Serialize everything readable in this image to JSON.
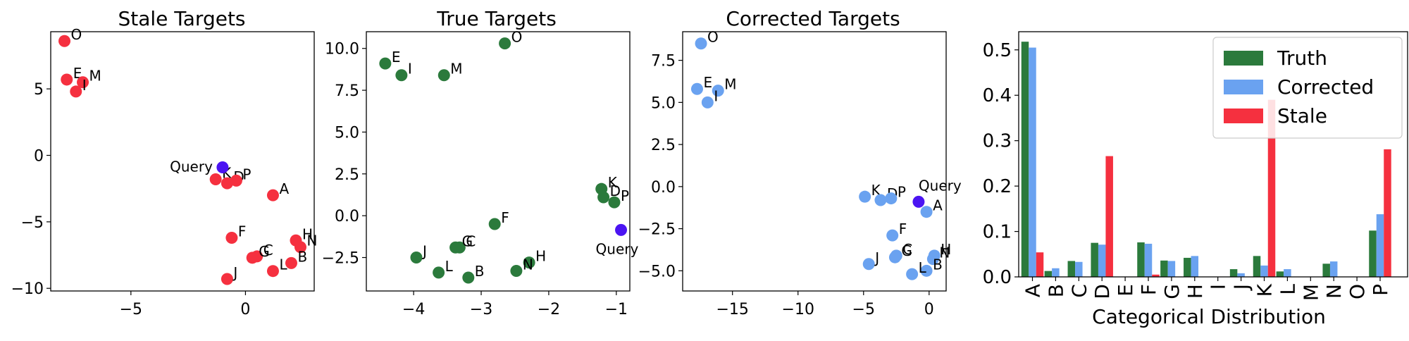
{
  "figure": {
    "background": "#ffffff"
  },
  "chart_data": [
    {
      "id": "stale",
      "type": "scatter",
      "title": "Stale Targets",
      "xlabel": "",
      "ylabel": "",
      "xlim": [
        -8.5,
        3.0
      ],
      "ylim": [
        -10.2,
        9.3
      ],
      "xticks": [
        -5,
        0
      ],
      "xtick_labels": [
        "−5",
        "0"
      ],
      "yticks": [
        -10,
        -5,
        0,
        5
      ],
      "ytick_labels": [
        "−10",
        "−5",
        "0",
        "5"
      ],
      "point_color": "#f5303f",
      "points": [
        {
          "label": "O",
          "x": -7.9,
          "y": 8.6
        },
        {
          "label": "E",
          "x": -7.8,
          "y": 5.7
        },
        {
          "label": "M",
          "x": -7.1,
          "y": 5.5
        },
        {
          "label": "I",
          "x": -7.4,
          "y": 4.8
        },
        {
          "label": "K",
          "x": -1.3,
          "y": -1.8
        },
        {
          "label": "D",
          "x": -0.8,
          "y": -2.1
        },
        {
          "label": "P",
          "x": -0.4,
          "y": -1.9
        },
        {
          "label": "A",
          "x": 1.2,
          "y": -3.0
        },
        {
          "label": "F",
          "x": -0.6,
          "y": -6.2
        },
        {
          "label": "H",
          "x": 2.2,
          "y": -6.4
        },
        {
          "label": "N",
          "x": 2.4,
          "y": -6.9
        },
        {
          "label": "C",
          "x": 0.5,
          "y": -7.6
        },
        {
          "label": "G",
          "x": 0.3,
          "y": -7.7
        },
        {
          "label": "B",
          "x": 2.0,
          "y": -8.1
        },
        {
          "label": "L",
          "x": 1.2,
          "y": -8.7
        },
        {
          "label": "J",
          "x": -0.8,
          "y": -9.3
        }
      ],
      "query": {
        "label": "Query",
        "x": -1.0,
        "y": -0.9,
        "color": "#4b14f2",
        "label_side": "left"
      }
    },
    {
      "id": "true",
      "type": "scatter",
      "title": "True Targets",
      "xlabel": "",
      "ylabel": "",
      "xlim": [
        -4.7,
        -0.8
      ],
      "ylim": [
        -4.5,
        11.0
      ],
      "xticks": [
        -4,
        -3,
        -2,
        -1
      ],
      "xtick_labels": [
        "−4",
        "−3",
        "−2",
        "−1"
      ],
      "yticks": [
        -2.5,
        0.0,
        2.5,
        5.0,
        7.5,
        10.0
      ],
      "ytick_labels": [
        "−2.5",
        "0.0",
        "2.5",
        "5.0",
        "7.5",
        "10.0"
      ],
      "point_color": "#2b7a3c",
      "points": [
        {
          "label": "O",
          "x": -2.65,
          "y": 10.3
        },
        {
          "label": "E",
          "x": -4.42,
          "y": 9.1
        },
        {
          "label": "I",
          "x": -4.18,
          "y": 8.4
        },
        {
          "label": "M",
          "x": -3.55,
          "y": 8.4
        },
        {
          "label": "K",
          "x": -1.22,
          "y": 1.6
        },
        {
          "label": "D",
          "x": -1.19,
          "y": 1.1
        },
        {
          "label": "P",
          "x": -1.03,
          "y": 0.8
        },
        {
          "label": "F",
          "x": -2.8,
          "y": -0.5
        },
        {
          "label": "C",
          "x": -3.32,
          "y": -1.9
        },
        {
          "label": "G",
          "x": -3.38,
          "y": -1.9
        },
        {
          "label": "J",
          "x": -3.96,
          "y": -2.5
        },
        {
          "label": "H",
          "x": -2.29,
          "y": -2.8
        },
        {
          "label": "N",
          "x": -2.48,
          "y": -3.3
        },
        {
          "label": "L",
          "x": -3.63,
          "y": -3.4
        },
        {
          "label": "B",
          "x": -3.19,
          "y": -3.7
        }
      ],
      "query": {
        "label": "Query",
        "x": -0.93,
        "y": -0.85,
        "color": "#4b14f2",
        "label_side": "below"
      }
    },
    {
      "id": "corrected",
      "type": "scatter",
      "title": "Corrected Targets",
      "xlabel": "",
      "ylabel": "",
      "xlim": [
        -18.8,
        1.3
      ],
      "ylim": [
        -6.2,
        9.2
      ],
      "xticks": [
        -15,
        -10,
        -5,
        0
      ],
      "xtick_labels": [
        "−15",
        "−10",
        "−5",
        "0"
      ],
      "yticks": [
        -5.0,
        -2.5,
        0.0,
        2.5,
        5.0,
        7.5
      ],
      "ytick_labels": [
        "−5.0",
        "−2.5",
        "0.0",
        "2.5",
        "5.0",
        "7.5"
      ],
      "point_color": "#6aa2f0",
      "points": [
        {
          "label": "O",
          "x": -17.4,
          "y": 8.5
        },
        {
          "label": "E",
          "x": -17.7,
          "y": 5.8
        },
        {
          "label": "M",
          "x": -16.1,
          "y": 5.7
        },
        {
          "label": "I",
          "x": -16.9,
          "y": 5.0
        },
        {
          "label": "K",
          "x": -4.9,
          "y": -0.6
        },
        {
          "label": "D",
          "x": -3.7,
          "y": -0.8
        },
        {
          "label": "P",
          "x": -2.9,
          "y": -0.7
        },
        {
          "label": "A",
          "x": -0.2,
          "y": -1.5
        },
        {
          "label": "F",
          "x": -2.8,
          "y": -2.9
        },
        {
          "label": "H",
          "x": 0.4,
          "y": -4.1
        },
        {
          "label": "N",
          "x": 0.3,
          "y": -4.3
        },
        {
          "label": "C",
          "x": -2.5,
          "y": -4.1
        },
        {
          "label": "G",
          "x": -2.6,
          "y": -4.2
        },
        {
          "label": "J",
          "x": -4.6,
          "y": -4.6
        },
        {
          "label": "B",
          "x": -0.2,
          "y": -5.0
        },
        {
          "label": "L",
          "x": -1.3,
          "y": -5.2
        }
      ],
      "query": {
        "label": "Query",
        "x": -0.8,
        "y": -0.9,
        "color": "#4b14f2",
        "label_side": "above"
      }
    },
    {
      "id": "distribution",
      "type": "bar",
      "title": "",
      "xlabel": "Categorical Distribution",
      "ylabel": "",
      "ylim": [
        0.0,
        0.54
      ],
      "yticks": [
        0.0,
        0.1,
        0.2,
        0.3,
        0.4,
        0.5
      ],
      "ytick_labels": [
        "0.0",
        "0.1",
        "0.2",
        "0.3",
        "0.4",
        "0.5"
      ],
      "categories": [
        "A",
        "B",
        "C",
        "D",
        "E",
        "F",
        "G",
        "H",
        "I",
        "J",
        "K",
        "L",
        "M",
        "N",
        "O",
        "P"
      ],
      "series": [
        {
          "name": "Truth",
          "color": "#2b7a3c",
          "values": [
            0.518,
            0.013,
            0.035,
            0.075,
            0.0,
            0.076,
            0.036,
            0.042,
            0.0,
            0.017,
            0.046,
            0.012,
            0.0,
            0.029,
            0.0,
            0.102
          ]
        },
        {
          "name": "Corrected",
          "color": "#6aa2f0",
          "values": [
            0.505,
            0.019,
            0.033,
            0.071,
            0.0,
            0.073,
            0.035,
            0.046,
            0.0,
            0.008,
            0.025,
            0.017,
            0.0,
            0.034,
            0.0,
            0.138
          ]
        },
        {
          "name": "Stale",
          "color": "#f5303f",
          "values": [
            0.054,
            0.0,
            0.0,
            0.266,
            0.0,
            0.005,
            0.0,
            0.0,
            0.0,
            0.0,
            0.39,
            0.0,
            0.0,
            0.0,
            0.0,
            0.281
          ]
        }
      ],
      "legend_position": "top-right"
    }
  ]
}
